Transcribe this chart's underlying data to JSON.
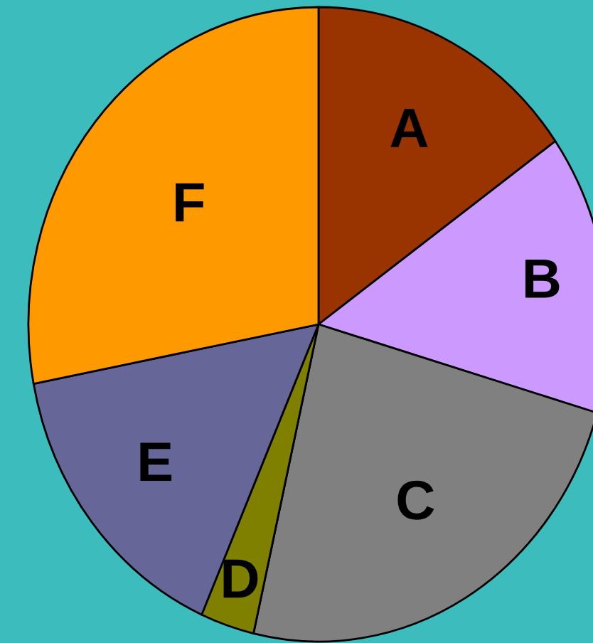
{
  "chart_data": {
    "type": "pie",
    "categories": [
      "A",
      "B",
      "C",
      "D",
      "E",
      "F"
    ],
    "values": [
      15.2,
      14.3,
      24.1,
      3.0,
      15.4,
      28.0
    ],
    "colors": [
      "#993300",
      "#cc99ff",
      "#808080",
      "#808000",
      "#666699",
      "#ff9900"
    ]
  }
}
